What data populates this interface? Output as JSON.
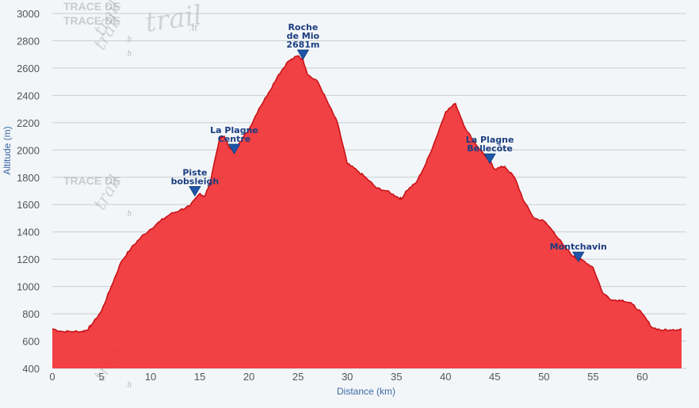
{
  "chart_data": {
    "type": "area",
    "xlabel": "Distance (km)",
    "ylabel": "Altitude (m)",
    "xlim": [
      0,
      64
    ],
    "ylim": [
      400,
      3000
    ],
    "x_ticks": [
      0,
      5,
      10,
      15,
      20,
      25,
      30,
      35,
      40,
      45,
      50,
      55,
      60
    ],
    "y_ticks": [
      400,
      600,
      800,
      1000,
      1200,
      1400,
      1600,
      1800,
      2000,
      2200,
      2400,
      2600,
      2800,
      3000
    ],
    "grid": "horizontal",
    "fill_color": "#f0373a",
    "line_color": "#c8141a",
    "marker_color": "#1f55a8",
    "series": [
      {
        "x": [
          0,
          1,
          2,
          3,
          3.5,
          4,
          5,
          6,
          7,
          8,
          9,
          10,
          11,
          12,
          13,
          14,
          15,
          15.5,
          16,
          17,
          17.5,
          18,
          18.5,
          19,
          20,
          21,
          22,
          23,
          24,
          25,
          25.5,
          26,
          27,
          28,
          29,
          30,
          31,
          32,
          33,
          34,
          35,
          35.5,
          36,
          37,
          38,
          39,
          40,
          41,
          42,
          43,
          44,
          44.5,
          45,
          46,
          47,
          48,
          49,
          50,
          51,
          52,
          53,
          53.5,
          54,
          55,
          56,
          57,
          58,
          59,
          60,
          61,
          62,
          63,
          64
        ],
        "y": [
          690,
          670,
          670,
          670,
          680,
          720,
          820,
          1000,
          1180,
          1280,
          1360,
          1420,
          1480,
          1530,
          1560,
          1590,
          1680,
          1660,
          1750,
          2080,
          2100,
          2020,
          1990,
          2050,
          2150,
          2300,
          2420,
          2550,
          2650,
          2690,
          2660,
          2550,
          2500,
          2350,
          2200,
          1900,
          1850,
          1790,
          1720,
          1700,
          1660,
          1640,
          1700,
          1760,
          1900,
          2080,
          2280,
          2340,
          2160,
          2050,
          1960,
          1920,
          1860,
          1880,
          1800,
          1620,
          1500,
          1480,
          1400,
          1300,
          1220,
          1200,
          1190,
          1140,
          950,
          900,
          900,
          870,
          800,
          700,
          680,
          680,
          690
        ]
      }
    ],
    "markers": [
      {
        "x": 14.5,
        "y": 1680,
        "label": [
          "Piste",
          "bobsleigh"
        ]
      },
      {
        "x": 18.5,
        "y": 1990,
        "label": [
          "La Plagne",
          "Centre"
        ]
      },
      {
        "x": 25.5,
        "y": 2681,
        "label": [
          "Roche",
          "de Mio",
          "2681m"
        ]
      },
      {
        "x": 44.5,
        "y": 1920,
        "label": [
          "La Plagne",
          "Bellecôte"
        ]
      },
      {
        "x": 53.5,
        "y": 1200,
        "label": [
          "Montchavin"
        ]
      }
    ]
  },
  "watermark": {
    "line1": "TRACE DE",
    "line2": "trail",
    "suffix": ".fr"
  }
}
